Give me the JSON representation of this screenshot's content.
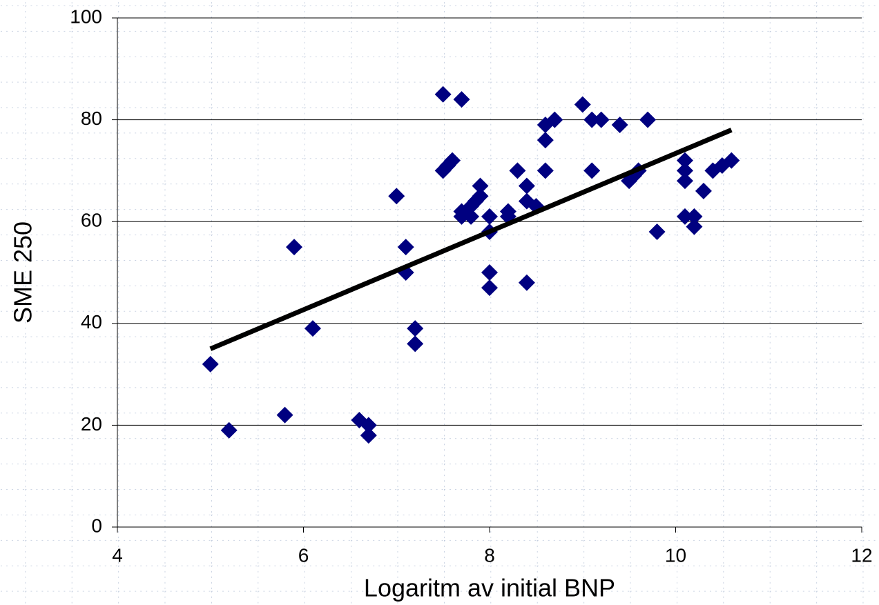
{
  "chart_data": {
    "type": "scatter",
    "x_label": "Logaritm av initial BNP",
    "y_label": "SME 250",
    "color": "#000080",
    "trendline_color": "#000000",
    "grid": true,
    "xlim": [
      4,
      12
    ],
    "ylim": [
      0,
      100
    ],
    "xticks": [
      4,
      6,
      8,
      10,
      12
    ],
    "yticks": [
      0,
      20,
      40,
      60,
      80,
      100
    ],
    "x": [
      5.0,
      5.2,
      5.8,
      5.9,
      6.1,
      6.6,
      6.7,
      6.7,
      7.0,
      7.1,
      7.1,
      7.2,
      7.2,
      7.5,
      7.5,
      7.55,
      7.6,
      7.7,
      7.7,
      7.7,
      7.8,
      7.8,
      7.85,
      7.9,
      7.9,
      8.0,
      8.0,
      8.0,
      8.0,
      8.2,
      8.2,
      8.3,
      8.4,
      8.4,
      8.4,
      8.5,
      8.6,
      8.6,
      8.6,
      8.7,
      9.0,
      9.1,
      9.1,
      9.2,
      9.4,
      9.5,
      9.55,
      9.6,
      9.7,
      9.8,
      10.1,
      10.1,
      10.1,
      10.1,
      10.2,
      10.2,
      10.3,
      10.4,
      10.5,
      10.6
    ],
    "values": [
      32,
      19,
      22,
      55,
      39,
      21,
      20,
      18,
      65,
      55,
      50,
      39,
      36,
      85,
      70,
      71,
      72,
      84,
      62,
      61,
      63,
      61,
      64,
      67,
      65,
      61,
      58,
      50,
      47,
      62,
      61,
      70,
      67,
      64,
      48,
      63,
      79,
      76,
      70,
      80,
      83,
      80,
      70,
      80,
      79,
      68,
      69,
      70,
      80,
      58,
      72,
      70,
      68,
      61,
      61,
      59,
      66,
      70,
      71,
      72
    ],
    "trendline": {
      "x": [
        5.0,
        10.6
      ],
      "values": [
        35,
        78
      ]
    }
  }
}
